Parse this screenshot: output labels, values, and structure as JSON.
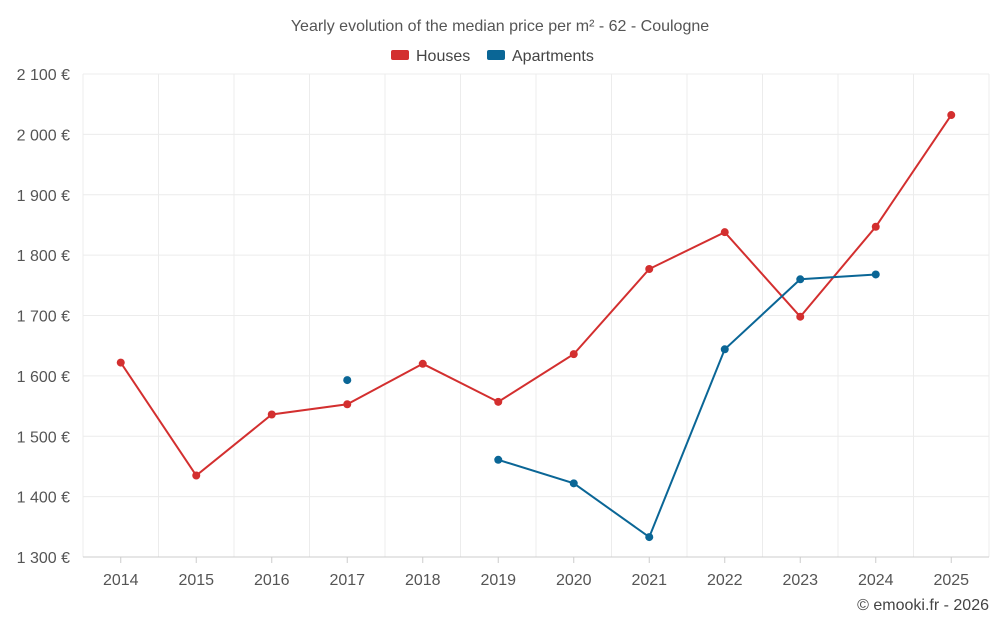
{
  "chart_data": {
    "type": "line",
    "title": "Yearly evolution of the median price per m² - 62 - Coulogne",
    "categories": [
      "2014",
      "2015",
      "2016",
      "2017",
      "2018",
      "2019",
      "2020",
      "2021",
      "2022",
      "2023",
      "2024",
      "2025"
    ],
    "ylim": [
      1300,
      2100
    ],
    "yticks": [
      1300,
      1400,
      1500,
      1600,
      1700,
      1800,
      1900,
      2000,
      2100
    ],
    "ytick_labels": [
      "1 300 €",
      "1 400 €",
      "1 500 €",
      "1 600 €",
      "1 700 €",
      "1 800 €",
      "1 900 €",
      "2 000 €",
      "2 100 €"
    ],
    "grid": true,
    "legend_position": "top-center",
    "series": [
      {
        "name": "Houses",
        "color": "#d32f2f",
        "values": [
          1622,
          1435,
          1536,
          1553,
          1620,
          1557,
          1636,
          1777,
          1838,
          1698,
          1847,
          2032
        ]
      },
      {
        "name": "Apartments",
        "color": "#0a6696",
        "values": [
          null,
          null,
          null,
          1593,
          null,
          1461,
          1422,
          1333,
          1644,
          1760,
          1768,
          null
        ]
      }
    ]
  },
  "credit": "© emooki.fr - 2026"
}
